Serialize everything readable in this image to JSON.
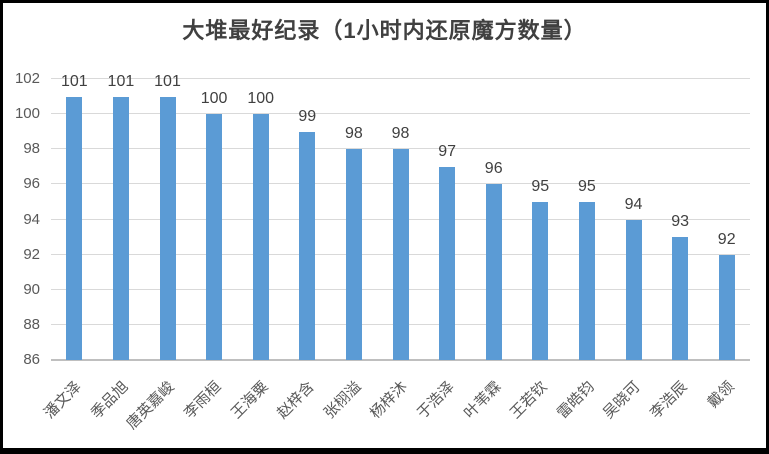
{
  "window": {
    "background": "#FFFFFF",
    "border_color": "#000000"
  },
  "chart_data": {
    "type": "bar",
    "title": "大堆最好纪录（1小时内还原魔方数量）",
    "xlabel": "",
    "ylabel": "",
    "categories": [
      "潘文泽",
      "季品旭",
      "唐英嘉峻",
      "李雨桓",
      "王海粟",
      "赵梓含",
      "张栩溢",
      "杨梓沐",
      "于浩泽",
      "叶苇霖",
      "王若钦",
      "雷皓钧",
      "吴晓可",
      "李浩辰",
      "戴领"
    ],
    "values": [
      101,
      101,
      101,
      100,
      100,
      99,
      98,
      98,
      97,
      96,
      95,
      95,
      94,
      93,
      92
    ],
    "ylim": [
      86,
      102
    ],
    "yticks": [
      86,
      88,
      90,
      92,
      94,
      96,
      98,
      100,
      102
    ],
    "grid": true,
    "legend": false,
    "data_labels_position": "outside-end",
    "colors": {
      "bar": "#5B9BD5",
      "gridline": "#D9D9D9",
      "axis_line": "#BFBFBF",
      "title_and_data_labels": "#404040",
      "tick_labels": "#595959"
    }
  }
}
